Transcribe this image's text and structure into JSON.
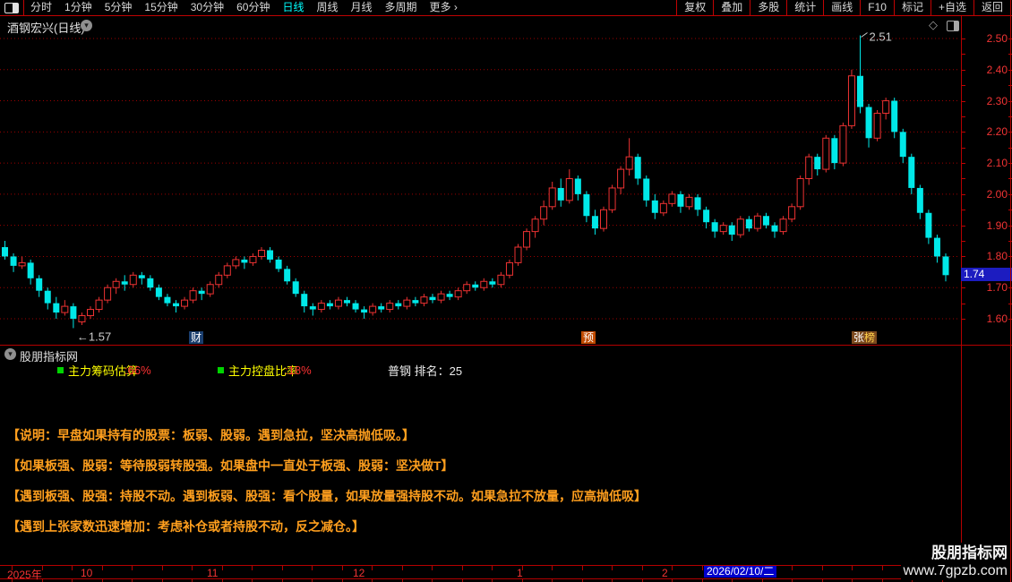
{
  "toolbar": {
    "left_items": [
      "分时",
      "1分钟",
      "5分钟",
      "15分钟",
      "30分钟",
      "60分钟",
      "日线",
      "周线",
      "月线",
      "多周期",
      "更多 ›"
    ],
    "active_item": "日线",
    "right_items": [
      "复权",
      "叠加",
      "多股",
      "统计",
      "画线",
      "F10",
      "标记",
      "+自选",
      "返回"
    ]
  },
  "title": {
    "text": "酒钢宏兴(日线)"
  },
  "chart_data": {
    "type": "candlestick",
    "symbol": "酒钢宏兴",
    "period": "日线",
    "ylim": [
      1.55,
      2.55
    ],
    "y_ticks": [
      2.5,
      2.4,
      2.3,
      2.2,
      2.1,
      2.0,
      1.9,
      1.8,
      1.7,
      1.6
    ],
    "grid": "horizontal-dotted-red",
    "current_price": "1.74",
    "up_color": "#ee3232",
    "down_color": "#00e8e8",
    "high_annotation": {
      "text": "2.51",
      "candle_index": 100
    },
    "low_annotation": {
      "text": "←1.57",
      "candle_index": 8
    },
    "event_markers": [
      {
        "x": 211,
        "bg": "#1a3e6e",
        "chars": [
          {
            "t": "财",
            "c": "#ffffff"
          }
        ]
      },
      {
        "x": 649,
        "bg": "#c04a00",
        "chars": [
          {
            "t": "预",
            "c": "#ffffff"
          }
        ]
      },
      {
        "x": 951,
        "bg": "#7d4a1e",
        "chars": [
          {
            "t": "张",
            "c": "#ffffff"
          },
          {
            "t": "榜",
            "c": "#ffd24a"
          }
        ]
      }
    ],
    "x_axis": {
      "months": [
        {
          "label": "2025年",
          "x": 8
        },
        {
          "label": "10",
          "x": 90
        },
        {
          "label": "11",
          "x": 231
        },
        {
          "label": "12",
          "x": 394
        },
        {
          "label": "1",
          "x": 577
        },
        {
          "label": "2",
          "x": 739
        }
      ],
      "current_date": {
        "label": "2026/02/10/二",
        "x": 786
      }
    },
    "candles": [
      [
        1.83,
        1.85,
        1.79,
        1.8
      ],
      [
        1.8,
        1.81,
        1.75,
        1.77
      ],
      [
        1.77,
        1.8,
        1.76,
        1.78
      ],
      [
        1.78,
        1.79,
        1.71,
        1.73
      ],
      [
        1.73,
        1.74,
        1.67,
        1.69
      ],
      [
        1.69,
        1.7,
        1.63,
        1.65
      ],
      [
        1.65,
        1.67,
        1.6,
        1.62
      ],
      [
        1.62,
        1.66,
        1.61,
        1.64
      ],
      [
        1.64,
        1.65,
        1.57,
        1.6
      ],
      [
        1.59,
        1.62,
        1.58,
        1.61
      ],
      [
        1.61,
        1.64,
        1.6,
        1.63
      ],
      [
        1.63,
        1.67,
        1.62,
        1.66
      ],
      [
        1.66,
        1.71,
        1.65,
        1.7
      ],
      [
        1.7,
        1.73,
        1.68,
        1.72
      ],
      [
        1.72,
        1.74,
        1.69,
        1.71
      ],
      [
        1.71,
        1.75,
        1.7,
        1.74
      ],
      [
        1.74,
        1.75,
        1.71,
        1.73
      ],
      [
        1.73,
        1.74,
        1.69,
        1.7
      ],
      [
        1.7,
        1.71,
        1.66,
        1.67
      ],
      [
        1.67,
        1.68,
        1.64,
        1.65
      ],
      [
        1.65,
        1.66,
        1.62,
        1.64
      ],
      [
        1.64,
        1.67,
        1.63,
        1.66
      ],
      [
        1.66,
        1.7,
        1.65,
        1.69
      ],
      [
        1.69,
        1.7,
        1.66,
        1.68
      ],
      [
        1.68,
        1.72,
        1.67,
        1.71
      ],
      [
        1.71,
        1.75,
        1.7,
        1.74
      ],
      [
        1.74,
        1.78,
        1.73,
        1.77
      ],
      [
        1.77,
        1.8,
        1.76,
        1.79
      ],
      [
        1.79,
        1.8,
        1.76,
        1.78
      ],
      [
        1.78,
        1.81,
        1.77,
        1.8
      ],
      [
        1.8,
        1.83,
        1.79,
        1.82
      ],
      [
        1.82,
        1.83,
        1.78,
        1.79
      ],
      [
        1.79,
        1.8,
        1.75,
        1.76
      ],
      [
        1.76,
        1.77,
        1.71,
        1.72
      ],
      [
        1.72,
        1.73,
        1.67,
        1.68
      ],
      [
        1.68,
        1.69,
        1.62,
        1.64
      ],
      [
        1.64,
        1.65,
        1.61,
        1.63
      ],
      [
        1.63,
        1.66,
        1.62,
        1.65
      ],
      [
        1.65,
        1.66,
        1.63,
        1.64
      ],
      [
        1.64,
        1.67,
        1.63,
        1.66
      ],
      [
        1.66,
        1.67,
        1.64,
        1.65
      ],
      [
        1.65,
        1.66,
        1.62,
        1.63
      ],
      [
        1.63,
        1.64,
        1.6,
        1.62
      ],
      [
        1.62,
        1.65,
        1.61,
        1.64
      ],
      [
        1.64,
        1.65,
        1.62,
        1.63
      ],
      [
        1.63,
        1.66,
        1.62,
        1.65
      ],
      [
        1.65,
        1.66,
        1.63,
        1.64
      ],
      [
        1.64,
        1.67,
        1.63,
        1.66
      ],
      [
        1.66,
        1.67,
        1.64,
        1.65
      ],
      [
        1.65,
        1.68,
        1.64,
        1.67
      ],
      [
        1.67,
        1.68,
        1.65,
        1.66
      ],
      [
        1.66,
        1.69,
        1.65,
        1.68
      ],
      [
        1.68,
        1.69,
        1.66,
        1.67
      ],
      [
        1.67,
        1.7,
        1.66,
        1.69
      ],
      [
        1.69,
        1.72,
        1.68,
        1.71
      ],
      [
        1.71,
        1.72,
        1.69,
        1.7
      ],
      [
        1.7,
        1.73,
        1.69,
        1.72
      ],
      [
        1.72,
        1.73,
        1.7,
        1.71
      ],
      [
        1.71,
        1.75,
        1.7,
        1.74
      ],
      [
        1.74,
        1.79,
        1.73,
        1.78
      ],
      [
        1.78,
        1.84,
        1.77,
        1.83
      ],
      [
        1.83,
        1.89,
        1.82,
        1.88
      ],
      [
        1.88,
        1.93,
        1.86,
        1.92
      ],
      [
        1.92,
        1.98,
        1.9,
        1.96
      ],
      [
        1.96,
        2.04,
        1.95,
        2.02
      ],
      [
        2.02,
        2.05,
        1.96,
        1.98
      ],
      [
        1.98,
        2.08,
        1.97,
        2.05
      ],
      [
        2.05,
        2.06,
        1.98,
        2.0
      ],
      [
        2.0,
        2.01,
        1.91,
        1.93
      ],
      [
        1.93,
        1.95,
        1.87,
        1.89
      ],
      [
        1.89,
        1.96,
        1.88,
        1.95
      ],
      [
        1.95,
        2.03,
        1.94,
        2.02
      ],
      [
        2.02,
        2.09,
        2.0,
        2.08
      ],
      [
        2.08,
        2.18,
        2.06,
        2.12
      ],
      [
        2.12,
        2.13,
        2.03,
        2.05
      ],
      [
        2.05,
        2.06,
        1.96,
        1.98
      ],
      [
        1.98,
        2.0,
        1.92,
        1.94
      ],
      [
        1.94,
        1.98,
        1.93,
        1.97
      ],
      [
        1.97,
        2.01,
        1.96,
        2.0
      ],
      [
        2.0,
        2.01,
        1.94,
        1.96
      ],
      [
        1.96,
        2.0,
        1.95,
        1.99
      ],
      [
        1.99,
        2.0,
        1.93,
        1.95
      ],
      [
        1.95,
        1.96,
        1.89,
        1.91
      ],
      [
        1.91,
        1.92,
        1.86,
        1.88
      ],
      [
        1.88,
        1.91,
        1.87,
        1.9
      ],
      [
        1.9,
        1.91,
        1.85,
        1.87
      ],
      [
        1.87,
        1.93,
        1.86,
        1.92
      ],
      [
        1.92,
        1.93,
        1.88,
        1.89
      ],
      [
        1.89,
        1.94,
        1.88,
        1.93
      ],
      [
        1.93,
        1.94,
        1.89,
        1.9
      ],
      [
        1.9,
        1.91,
        1.86,
        1.88
      ],
      [
        1.88,
        1.93,
        1.87,
        1.92
      ],
      [
        1.92,
        1.97,
        1.91,
        1.96
      ],
      [
        1.96,
        2.06,
        1.95,
        2.05
      ],
      [
        2.05,
        2.13,
        2.03,
        2.12
      ],
      [
        2.12,
        2.13,
        2.06,
        2.08
      ],
      [
        2.08,
        2.19,
        2.07,
        2.18
      ],
      [
        2.18,
        2.19,
        2.08,
        2.1
      ],
      [
        2.1,
        2.23,
        2.09,
        2.22
      ],
      [
        2.22,
        2.4,
        2.21,
        2.38
      ],
      [
        2.38,
        2.51,
        2.26,
        2.28
      ],
      [
        2.28,
        2.29,
        2.15,
        2.18
      ],
      [
        2.18,
        2.27,
        2.17,
        2.26
      ],
      [
        2.26,
        2.31,
        2.24,
        2.3
      ],
      [
        2.3,
        2.31,
        2.18,
        2.2
      ],
      [
        2.2,
        2.21,
        2.1,
        2.12
      ],
      [
        2.12,
        2.13,
        2.0,
        2.02
      ],
      [
        2.02,
        2.03,
        1.92,
        1.94
      ],
      [
        1.94,
        1.95,
        1.84,
        1.86
      ],
      [
        1.86,
        1.87,
        1.78,
        1.8
      ],
      [
        1.8,
        1.81,
        1.72,
        1.74
      ]
    ]
  },
  "indicator_panel": {
    "header": "股朋指标网",
    "legend": [
      {
        "label": "主力筹码估算",
        "value": ":66%"
      },
      {
        "label": "主力控盘比率",
        "value": ":18%"
      }
    ],
    "rank_text": "普钢 排名：25",
    "notes": [
      "【说明：早盘如果持有的股票：板弱、股弱。遇到急拉，坚决高抛低吸。】",
      "【如果板强、股弱：等待股弱转股强。如果盘中一直处于板强、股弱：坚决做T】",
      "【遇到板强、股强：持股不动。遇到板弱、股强：看个股量，如果放量强持股不动。如果急拉不放量，应高抛低吸】",
      "【遇到上张家数迅速增加：考虑补仓或者持股不动，反之减仓。】"
    ]
  },
  "watermark": {
    "line1": "股朋指标网",
    "line2": "www.7gpzb.com"
  },
  "colors": {
    "border_red": "#b40000",
    "separator_red": "#c00202",
    "grid_red": "#9c0000",
    "axis_text": "#f23434",
    "active_tab": "#00ffff",
    "legend_yellow": "#ffff00",
    "legend_value_red": "#ff3232",
    "note_orange": "#ff9f1e",
    "price_tag_bg": "#1c1cc0",
    "date_tag_bg": "#0000cc"
  }
}
